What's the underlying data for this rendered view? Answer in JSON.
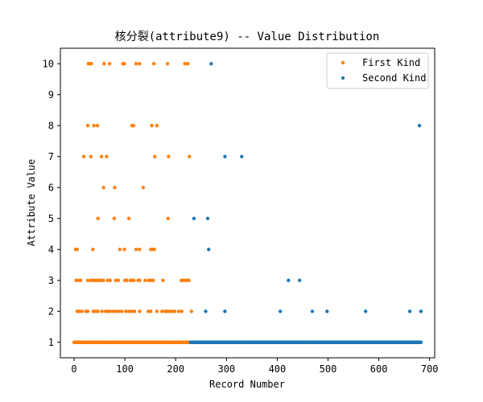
{
  "chart_data": {
    "type": "scatter",
    "title": "核分裂(attribute9) -- Value Distribution",
    "xlabel": "Record Number",
    "ylabel": "Attribute Value",
    "xlim": [
      -27,
      710
    ],
    "ylim": [
      0.5,
      10.5
    ],
    "xticks": [
      "0",
      "100",
      "200",
      "300",
      "400",
      "500",
      "600",
      "700"
    ],
    "yticks": [
      "1",
      "2",
      "3",
      "4",
      "5",
      "6",
      "7",
      "8",
      "9",
      "10"
    ],
    "legend_position": "top-right",
    "series": [
      {
        "name": "First Kind",
        "color": "#ff7f0e",
        "x": [
          28,
          31,
          34,
          59,
          70,
          96,
          99,
          122,
          129,
          157,
          184,
          218,
          224,
          27,
          39,
          46,
          114,
          117,
          153,
          163,
          19,
          33,
          54,
          64,
          159,
          186,
          227,
          58,
          80,
          136,
          47,
          79,
          108,
          185,
          3,
          6,
          37,
          90,
          99,
          122,
          129,
          151,
          155,
          158,
          4,
          9,
          13,
          27,
          33,
          37,
          41,
          46,
          50,
          55,
          58,
          66,
          71,
          82,
          87,
          100,
          104,
          111,
          115,
          118,
          126,
          129,
          140,
          147,
          151,
          156,
          175,
          211,
          215,
          219,
          222,
          226,
          6,
          10,
          15,
          23,
          27,
          38,
          43,
          47,
          55,
          62,
          67,
          71,
          77,
          83,
          89,
          94,
          102,
          108,
          113,
          119,
          129,
          146,
          151,
          163,
          173,
          179,
          183,
          188,
          193,
          198,
          206,
          212,
          231
        ],
        "y": [
          10,
          10,
          10,
          10,
          10,
          10,
          10,
          10,
          10,
          10,
          10,
          10,
          10,
          8,
          8,
          8,
          8,
          8,
          8,
          8,
          7,
          7,
          7,
          7,
          7,
          7,
          7,
          6,
          6,
          6,
          5,
          5,
          5,
          5,
          4,
          4,
          4,
          4,
          4,
          4,
          4,
          4,
          4,
          4,
          3,
          3,
          3,
          3,
          3,
          3,
          3,
          3,
          3,
          3,
          3,
          3,
          3,
          3,
          3,
          3,
          3,
          3,
          3,
          3,
          3,
          3,
          3,
          3,
          3,
          3,
          3,
          3,
          3,
          3,
          3,
          3,
          2,
          2,
          2,
          2,
          2,
          2,
          2,
          2,
          2,
          2,
          2,
          2,
          2,
          2,
          2,
          2,
          2,
          2,
          2,
          2,
          2,
          2,
          2,
          2,
          2,
          2,
          2,
          2,
          2,
          2,
          2,
          2,
          2
        ],
        "dense_runs": [
          {
            "y": 1,
            "x_from": 0,
            "x_to": 228
          }
        ]
      },
      {
        "name": "Second Kind",
        "color": "#1f77b4",
        "x": [
          270,
          680,
          297,
          330,
          236,
          263,
          265,
          422,
          444,
          259,
          297,
          406,
          469,
          498,
          574,
          661,
          683
        ],
        "y": [
          10,
          8,
          7,
          7,
          5,
          5,
          4,
          3,
          3,
          2,
          2,
          2,
          2,
          2,
          2,
          2,
          2
        ],
        "dense_runs": [
          {
            "y": 1,
            "x_from": 229,
            "x_to": 683
          }
        ]
      }
    ]
  }
}
